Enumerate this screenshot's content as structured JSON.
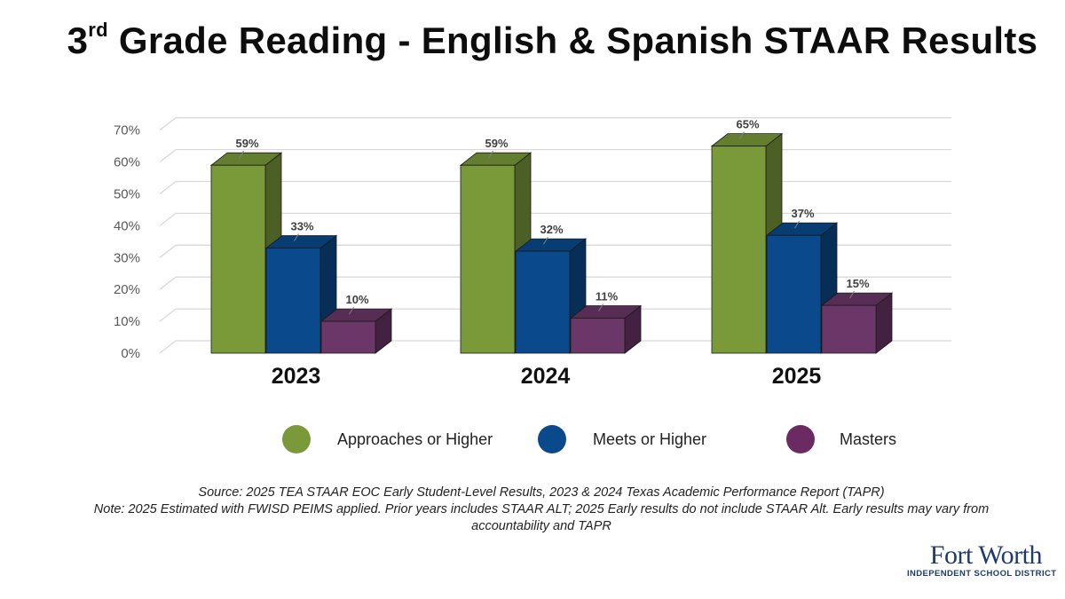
{
  "title": {
    "prefix": "3",
    "sup": "rd",
    "rest": " Grade Reading - English & Spanish STAAR Results"
  },
  "chart_data": {
    "type": "bar",
    "title": "3rd Grade Reading - English & Spanish STAAR Results",
    "categories": [
      "2023",
      "2024",
      "2025"
    ],
    "series": [
      {
        "name": "Approaches or Higher",
        "values": [
          59,
          59,
          65
        ],
        "labels": [
          "59%",
          "59%",
          "65%"
        ],
        "color": "#7a9a3a"
      },
      {
        "name": "Meets or Higher",
        "values": [
          33,
          32,
          37
        ],
        "labels": [
          "33%",
          "32%",
          "37%"
        ],
        "color": "#0a4a8c"
      },
      {
        "name": "Masters",
        "values": [
          10,
          11,
          15
        ],
        "labels": [
          "10%",
          "11%",
          "15%"
        ],
        "color": "#6b3768"
      }
    ],
    "ylim": [
      0,
      70
    ],
    "yticks": [
      "0%",
      "10%",
      "20%",
      "30%",
      "40%",
      "50%",
      "60%",
      "70%"
    ],
    "xlabel": "",
    "ylabel": "",
    "grid": true,
    "legend": "bottom",
    "style": "3d-clustered-column"
  },
  "legend": {
    "items": [
      {
        "label": "Approaches or Higher",
        "color": "#7a9a3a"
      },
      {
        "label": "Meets or Higher",
        "color": "#0a4a8c"
      },
      {
        "label": "Masters",
        "color": "#6b2a62"
      }
    ]
  },
  "notes": {
    "source": "Source: 2025 TEA STAAR EOC Early Student-Level Results, 2023 & 2024 Texas Academic Performance Report (TAPR)",
    "note": "Note: 2025 Estimated with FWISD PEIMS applied. Prior years includes STAAR ALT; 2025 Early results do not include STAAR Alt. Early results may vary from accountability and TAPR"
  },
  "logo": {
    "line1": "Fort Worth",
    "line2": "INDEPENDENT SCHOOL DISTRICT"
  }
}
